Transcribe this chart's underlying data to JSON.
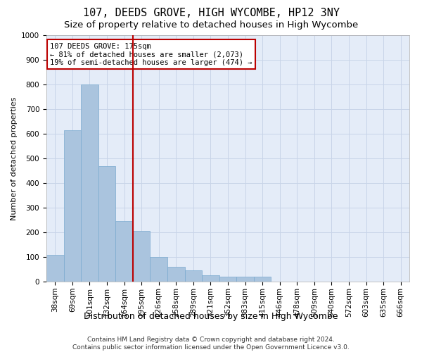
{
  "title": "107, DEEDS GROVE, HIGH WYCOMBE, HP12 3NY",
  "subtitle": "Size of property relative to detached houses in High Wycombe",
  "xlabel": "Distribution of detached houses by size in High Wycombe",
  "ylabel": "Number of detached properties",
  "categories": [
    "38sqm",
    "69sqm",
    "101sqm",
    "132sqm",
    "164sqm",
    "195sqm",
    "226sqm",
    "258sqm",
    "289sqm",
    "321sqm",
    "352sqm",
    "383sqm",
    "415sqm",
    "446sqm",
    "478sqm",
    "509sqm",
    "540sqm",
    "572sqm",
    "603sqm",
    "635sqm",
    "666sqm"
  ],
  "values": [
    110,
    615,
    800,
    470,
    245,
    205,
    100,
    60,
    45,
    25,
    20,
    20,
    20,
    0,
    0,
    0,
    0,
    0,
    0,
    0,
    0
  ],
  "bar_color": "#aac4de",
  "bar_edge_color": "#7aaacf",
  "grid_color": "#c8d4e8",
  "background_color": "#e4ecf8",
  "vline_x": 4.5,
  "vline_color": "#bb0000",
  "annotation_text": "107 DEEDS GROVE: 175sqm\n← 81% of detached houses are smaller (2,073)\n19% of semi-detached houses are larger (474) →",
  "annotation_box_color": "#ffffff",
  "annotation_box_edge": "#bb0000",
  "ylim": [
    0,
    1000
  ],
  "yticks": [
    0,
    100,
    200,
    300,
    400,
    500,
    600,
    700,
    800,
    900,
    1000
  ],
  "footer": "Contains HM Land Registry data © Crown copyright and database right 2024.\nContains public sector information licensed under the Open Government Licence v3.0.",
  "title_fontsize": 11,
  "subtitle_fontsize": 9.5,
  "xlabel_fontsize": 9,
  "ylabel_fontsize": 8,
  "tick_fontsize": 7.5,
  "footer_fontsize": 6.5,
  "annot_fontsize": 7.5
}
